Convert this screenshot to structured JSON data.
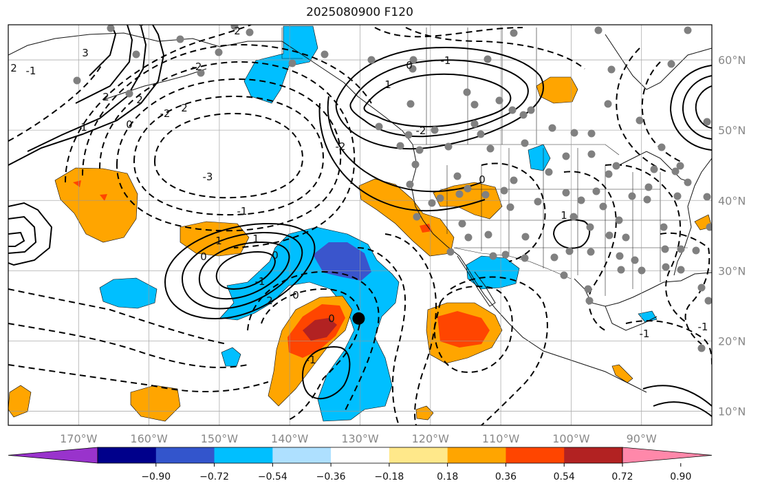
{
  "title": "2025080900 F120",
  "lon_labels": [
    "170°W",
    "160°W",
    "150°W",
    "140°W",
    "130°W",
    "120°W",
    "110°W",
    "100°W",
    "90°W"
  ],
  "lon_values": [
    -170,
    -160,
    -150,
    -140,
    -130,
    -120,
    -110,
    -100,
    -90
  ],
  "lat_labels": [
    "60°N",
    "50°N",
    "40°N",
    "30°N",
    "20°N",
    "10°N"
  ],
  "lat_values": [
    60,
    50,
    40,
    30,
    20,
    10
  ],
  "extent": {
    "lon_min": -180,
    "lon_max": -80,
    "lat_min": 8,
    "lat_max": 65
  },
  "gridlines": true,
  "colorbar": {
    "orientation": "horizontal",
    "extend": "both",
    "ticks": [
      "−0.90",
      "−0.72",
      "−0.54",
      "−0.36",
      "−0.18",
      "0.18",
      "0.36",
      "0.54",
      "0.72",
      "0.90"
    ],
    "colors": [
      "#9933cc",
      "#00008b",
      "#3355cc",
      "#00bfff",
      "#aee0ff",
      "#ffffff",
      "#ffe88a",
      "#ffa500",
      "#ff4500",
      "#b22222",
      "#ff88aa"
    ]
  },
  "shading_colors": {
    "cyan": "#00bfff",
    "blue": "#3a55cc",
    "orange": "#ffa500",
    "red": "#ff4500",
    "darkred": "#b22222"
  },
  "contour_labels": [
    "2",
    "3",
    "-1",
    "2",
    "1",
    "0",
    "2",
    "-2",
    "2",
    "-3",
    "-2",
    "0",
    "2",
    "-1",
    "0",
    "1",
    "1",
    "-1",
    "2",
    "0",
    "0",
    "-1",
    "0",
    "0",
    "-1",
    "-2",
    "1",
    "-2",
    "0",
    "1",
    "-1",
    "-1"
  ],
  "marker": {
    "lon": -130.2,
    "lat": 23.2,
    "name": "storm-center"
  }
}
